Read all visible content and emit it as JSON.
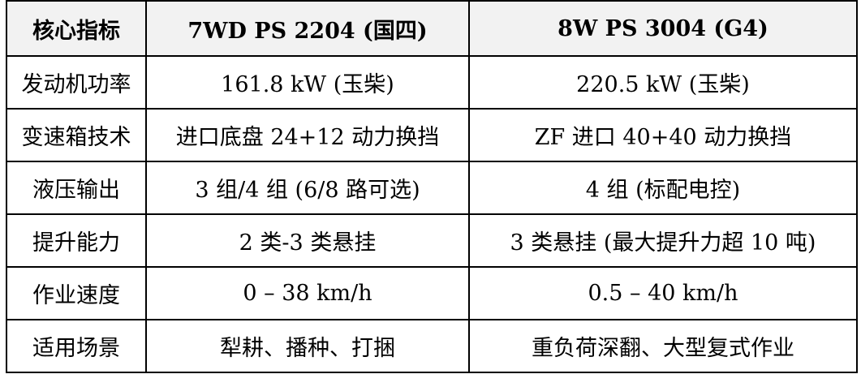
{
  "table": {
    "headers": [
      "核心指标",
      "7WD PS 2204 (国四)",
      "8W PS 3004 (G4)"
    ],
    "rows": [
      [
        "发动机功率",
        "161.8 kW (玉柴)",
        "220.5 kW (玉柴)"
      ],
      [
        "变速箱技术",
        "进口底盘 24+12 动力换挡",
        "ZF 进口 40+40 动力换挡"
      ],
      [
        "液压输出",
        "3 组/4 组 (6/8 路可选)",
        "4 组 (标配电控)"
      ],
      [
        "提升能力",
        "2 类-3 类悬挂",
        "3 类悬挂 (最大提升力超 10 吨)"
      ],
      [
        "作业速度",
        "0 – 38 km/h",
        "0.5 – 40 km/h"
      ],
      [
        "适用场景",
        "犁耕、播种、打捆",
        "重负荷深翻、大型复式作业"
      ]
    ]
  },
  "colors": {
    "header_bg": "#f2f2f2",
    "border": "#000000",
    "text": "#000000"
  }
}
